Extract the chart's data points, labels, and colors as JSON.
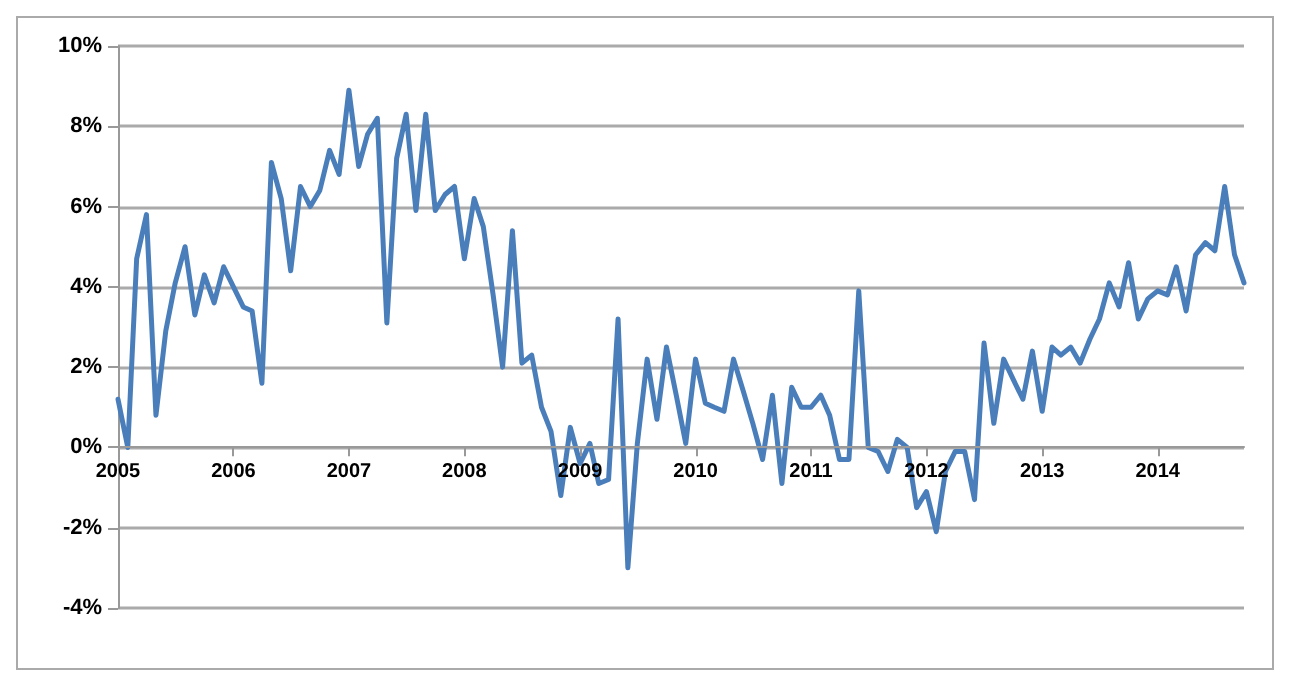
{
  "chart_data": {
    "type": "line",
    "x": [
      "2005-01",
      "2005-02",
      "2005-03",
      "2005-04",
      "2005-05",
      "2005-06",
      "2005-07",
      "2005-08",
      "2005-09",
      "2005-10",
      "2005-11",
      "2005-12",
      "2006-01",
      "2006-02",
      "2006-03",
      "2006-04",
      "2006-05",
      "2006-06",
      "2006-07",
      "2006-08",
      "2006-09",
      "2006-10",
      "2006-11",
      "2006-12",
      "2007-01",
      "2007-02",
      "2007-03",
      "2007-04",
      "2007-05",
      "2007-06",
      "2007-07",
      "2007-08",
      "2007-09",
      "2007-10",
      "2007-11",
      "2007-12",
      "2008-01",
      "2008-02",
      "2008-03",
      "2008-04",
      "2008-05",
      "2008-06",
      "2008-07",
      "2008-08",
      "2008-09",
      "2008-10",
      "2008-11",
      "2008-12",
      "2009-01",
      "2009-02",
      "2009-03",
      "2009-04",
      "2009-05",
      "2009-06",
      "2009-07",
      "2009-08",
      "2009-09",
      "2009-10",
      "2009-11",
      "2009-12",
      "2010-01",
      "2010-02",
      "2010-03",
      "2010-04",
      "2010-05",
      "2010-06",
      "2010-07",
      "2010-08",
      "2010-09",
      "2010-10",
      "2010-11",
      "2010-12",
      "2011-01",
      "2011-02",
      "2011-03",
      "2011-04",
      "2011-05",
      "2011-06",
      "2011-07",
      "2011-08",
      "2011-09",
      "2011-10",
      "2011-11",
      "2011-12",
      "2012-01",
      "2012-02",
      "2012-03",
      "2012-04",
      "2012-05",
      "2012-06",
      "2012-07",
      "2012-08",
      "2012-09",
      "2012-10",
      "2012-11",
      "2012-12",
      "2013-01",
      "2013-02",
      "2013-03",
      "2013-04",
      "2013-05",
      "2013-06",
      "2013-07",
      "2013-08",
      "2013-09",
      "2013-10",
      "2013-11",
      "2013-12",
      "2014-01",
      "2014-02",
      "2014-03",
      "2014-04",
      "2014-05",
      "2014-06",
      "2014-07",
      "2014-08",
      "2014-09",
      "2014-10"
    ],
    "series": [
      {
        "color": "#4a7ebb",
        "values": [
          1.2,
          0.0,
          4.7,
          5.8,
          0.8,
          2.9,
          4.1,
          5.0,
          3.3,
          4.3,
          3.6,
          4.5,
          4.0,
          3.5,
          3.4,
          1.6,
          7.1,
          6.2,
          4.4,
          6.5,
          6.0,
          6.4,
          7.4,
          6.8,
          8.9,
          7.0,
          7.8,
          8.2,
          3.1,
          7.2,
          8.3,
          5.9,
          8.3,
          5.9,
          6.3,
          6.5,
          4.7,
          6.2,
          5.5,
          3.8,
          2.0,
          5.4,
          2.1,
          2.3,
          1.0,
          0.4,
          -1.2,
          0.5,
          -0.4,
          0.1,
          -0.9,
          -0.8,
          3.2,
          -3.0,
          0.1,
          2.2,
          0.7,
          2.5,
          1.3,
          0.1,
          2.2,
          1.1,
          1.0,
          0.9,
          2.2,
          1.4,
          0.6,
          -0.3,
          1.3,
          -0.9,
          1.5,
          1.0,
          1.0,
          1.3,
          0.8,
          -0.3,
          -0.3,
          3.9,
          0.0,
          -0.1,
          -0.6,
          0.2,
          0.0,
          -1.5,
          -1.1,
          -2.1,
          -0.6,
          -0.1,
          -0.1,
          -1.3,
          2.6,
          0.6,
          2.2,
          1.7,
          1.2,
          2.4,
          0.9,
          2.5,
          2.3,
          2.5,
          2.1,
          2.7,
          3.2,
          4.1,
          3.5,
          4.6,
          3.2,
          3.7,
          3.9,
          3.8,
          4.5,
          3.4,
          4.8,
          5.1,
          4.9,
          6.5,
          4.8,
          4.1
        ]
      }
    ],
    "xlim": [
      "2005-01",
      "2014-10"
    ],
    "xticks": [
      {
        "value": "2005-01",
        "label": "2005"
      },
      {
        "value": "2006-01",
        "label": "2006"
      },
      {
        "value": "2007-01",
        "label": "2007"
      },
      {
        "value": "2008-01",
        "label": "2008"
      },
      {
        "value": "2009-01",
        "label": "2009"
      },
      {
        "value": "2010-01",
        "label": "2010"
      },
      {
        "value": "2011-01",
        "label": "2011"
      },
      {
        "value": "2012-01",
        "label": "2012"
      },
      {
        "value": "2013-01",
        "label": "2013"
      },
      {
        "value": "2014-01",
        "label": "2014"
      }
    ],
    "ylim": [
      -4,
      10
    ],
    "yticks": [
      {
        "value": -4,
        "label": "-4%"
      },
      {
        "value": -2,
        "label": "-2%"
      },
      {
        "value": 0,
        "label": "0%"
      },
      {
        "value": 2,
        "label": "2%"
      },
      {
        "value": 4,
        "label": "4%"
      },
      {
        "value": 6,
        "label": "6%"
      },
      {
        "value": 8,
        "label": "8%"
      },
      {
        "value": 10,
        "label": "10%"
      }
    ],
    "grid": "y",
    "marker": "none",
    "line_style": "solid"
  }
}
